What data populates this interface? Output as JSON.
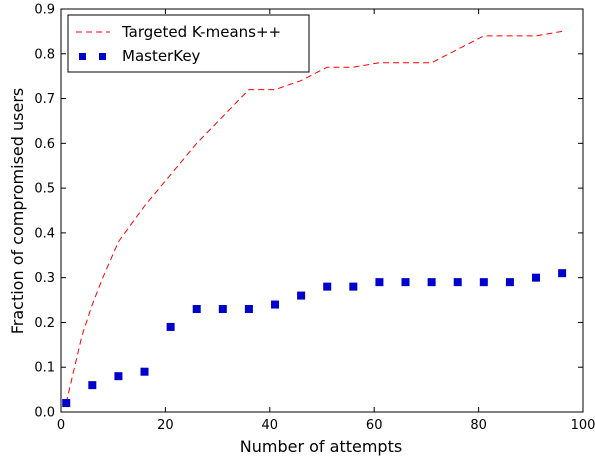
{
  "chart_data": {
    "type": "line",
    "xlabel": "Number of attempts",
    "ylabel": "Fraction of compromised users",
    "xlim": [
      0,
      100
    ],
    "ylim": [
      0,
      0.9
    ],
    "x_ticks": [
      "0",
      "20",
      "40",
      "60",
      "80",
      "100"
    ],
    "y_ticks": [
      "0.0",
      "0.1",
      "0.2",
      "0.3",
      "0.4",
      "0.5",
      "0.6",
      "0.7",
      "0.8",
      "0.9"
    ],
    "grid": false,
    "legend_position": "top-left",
    "series": [
      {
        "name": "Targeted K-means++",
        "style": "dashed-line",
        "color": "#ff0000",
        "x": [
          1,
          2,
          4,
          6,
          8,
          11,
          16,
          21,
          26,
          31,
          36,
          41,
          46,
          51,
          56,
          61,
          66,
          71,
          76,
          81,
          86,
          91,
          96
        ],
        "y": [
          0.02,
          0.07,
          0.17,
          0.24,
          0.3,
          0.38,
          0.46,
          0.53,
          0.6,
          0.66,
          0.72,
          0.72,
          0.74,
          0.77,
          0.77,
          0.78,
          0.78,
          0.78,
          0.81,
          0.84,
          0.84,
          0.84,
          0.85
        ]
      },
      {
        "name": "MasterKey",
        "style": "square-markers",
        "color": "#0000cc",
        "x": [
          1,
          6,
          11,
          16,
          21,
          26,
          31,
          36,
          41,
          46,
          51,
          56,
          61,
          66,
          71,
          76,
          81,
          86,
          91,
          96
        ],
        "y": [
          0.02,
          0.06,
          0.08,
          0.09,
          0.19,
          0.23,
          0.23,
          0.23,
          0.24,
          0.26,
          0.28,
          0.28,
          0.29,
          0.29,
          0.29,
          0.29,
          0.29,
          0.29,
          0.3,
          0.31
        ]
      }
    ]
  }
}
